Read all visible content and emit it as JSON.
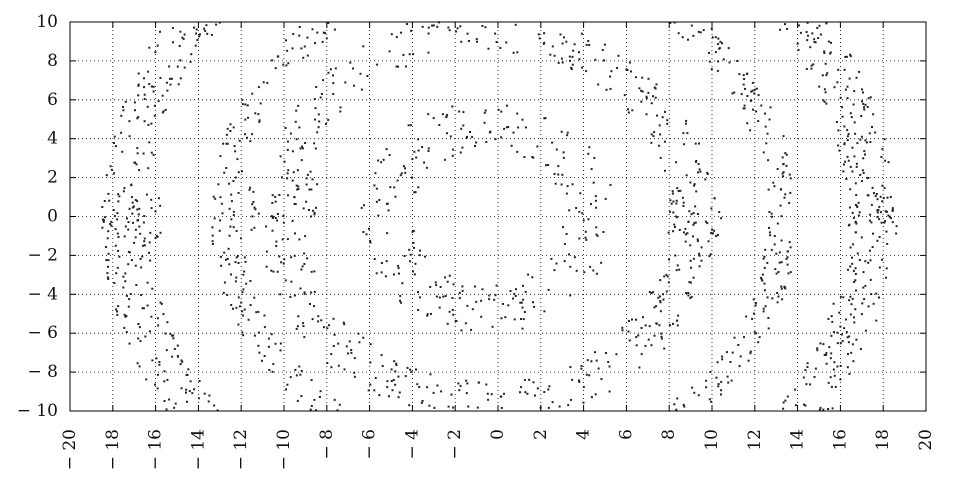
{
  "chart_data": {
    "type": "scatter",
    "title": "",
    "xlabel": "",
    "ylabel": "",
    "xlim": [
      -20,
      20
    ],
    "ylim": [
      -10,
      10
    ],
    "grid": true,
    "legend": "none",
    "x_ticks": [
      -20,
      -18,
      -16,
      -14,
      -12,
      -10,
      -8,
      -6,
      -4,
      -2,
      0,
      2,
      4,
      6,
      8,
      10,
      12,
      14,
      16,
      18,
      20
    ],
    "y_ticks": [
      -10,
      -8,
      -6,
      -4,
      -2,
      0,
      2,
      4,
      6,
      8,
      10
    ],
    "x_tick_labels": [
      "− 20",
      "− 18",
      "− 16",
      "− 14",
      "− 12",
      "− 10",
      "− 8",
      "− 6",
      "− 4",
      "− 2",
      "0",
      "2",
      "4",
      "6",
      "8",
      "10",
      "12",
      "14",
      "16",
      "18",
      "20"
    ],
    "y_tick_labels": [
      "− 10",
      "− 8",
      "− 6",
      "− 4",
      "− 2",
      "0",
      "2",
      "4",
      "6",
      "8",
      "10"
    ],
    "point_color": "#222222",
    "series": [
      {
        "rings": [
          {
            "center": [
              -0.5,
              0
            ],
            "r_inner": 3.5,
            "r_outer": 6.0,
            "points": 260
          },
          {
            "center": [
              -0.5,
              0
            ],
            "r_inner": 8.5,
            "r_outer": 10.7,
            "points": 520
          },
          {
            "center": [
              0.3,
              0
            ],
            "r_inner": 12.3,
            "r_outer": 13.7,
            "points": 620
          },
          {
            "center": [
              0.0,
              0
            ],
            "r_inner": 16.3,
            "r_outer": 18.5,
            "points": 1300
          }
        ],
        "markers": [
          {
            "x": -18.3,
            "y": 0.2
          },
          {
            "x": -17.0,
            "y": 0.5
          },
          {
            "x": -16.0,
            "y": -0.2
          },
          {
            "x": -11.4,
            "y": 0.4
          },
          {
            "x": -10.3,
            "y": -0.1
          },
          {
            "x": -8.6,
            "y": 0.8
          },
          {
            "x": 8.4,
            "y": 0.2
          },
          {
            "x": 9.1,
            "y": -0.4
          },
          {
            "x": 10.2,
            "y": 0.1
          },
          {
            "x": 16.8,
            "y": -0.5
          },
          {
            "x": 17.9,
            "y": 0.3
          },
          {
            "x": 18.4,
            "y": -0.2
          }
        ]
      }
    ]
  }
}
